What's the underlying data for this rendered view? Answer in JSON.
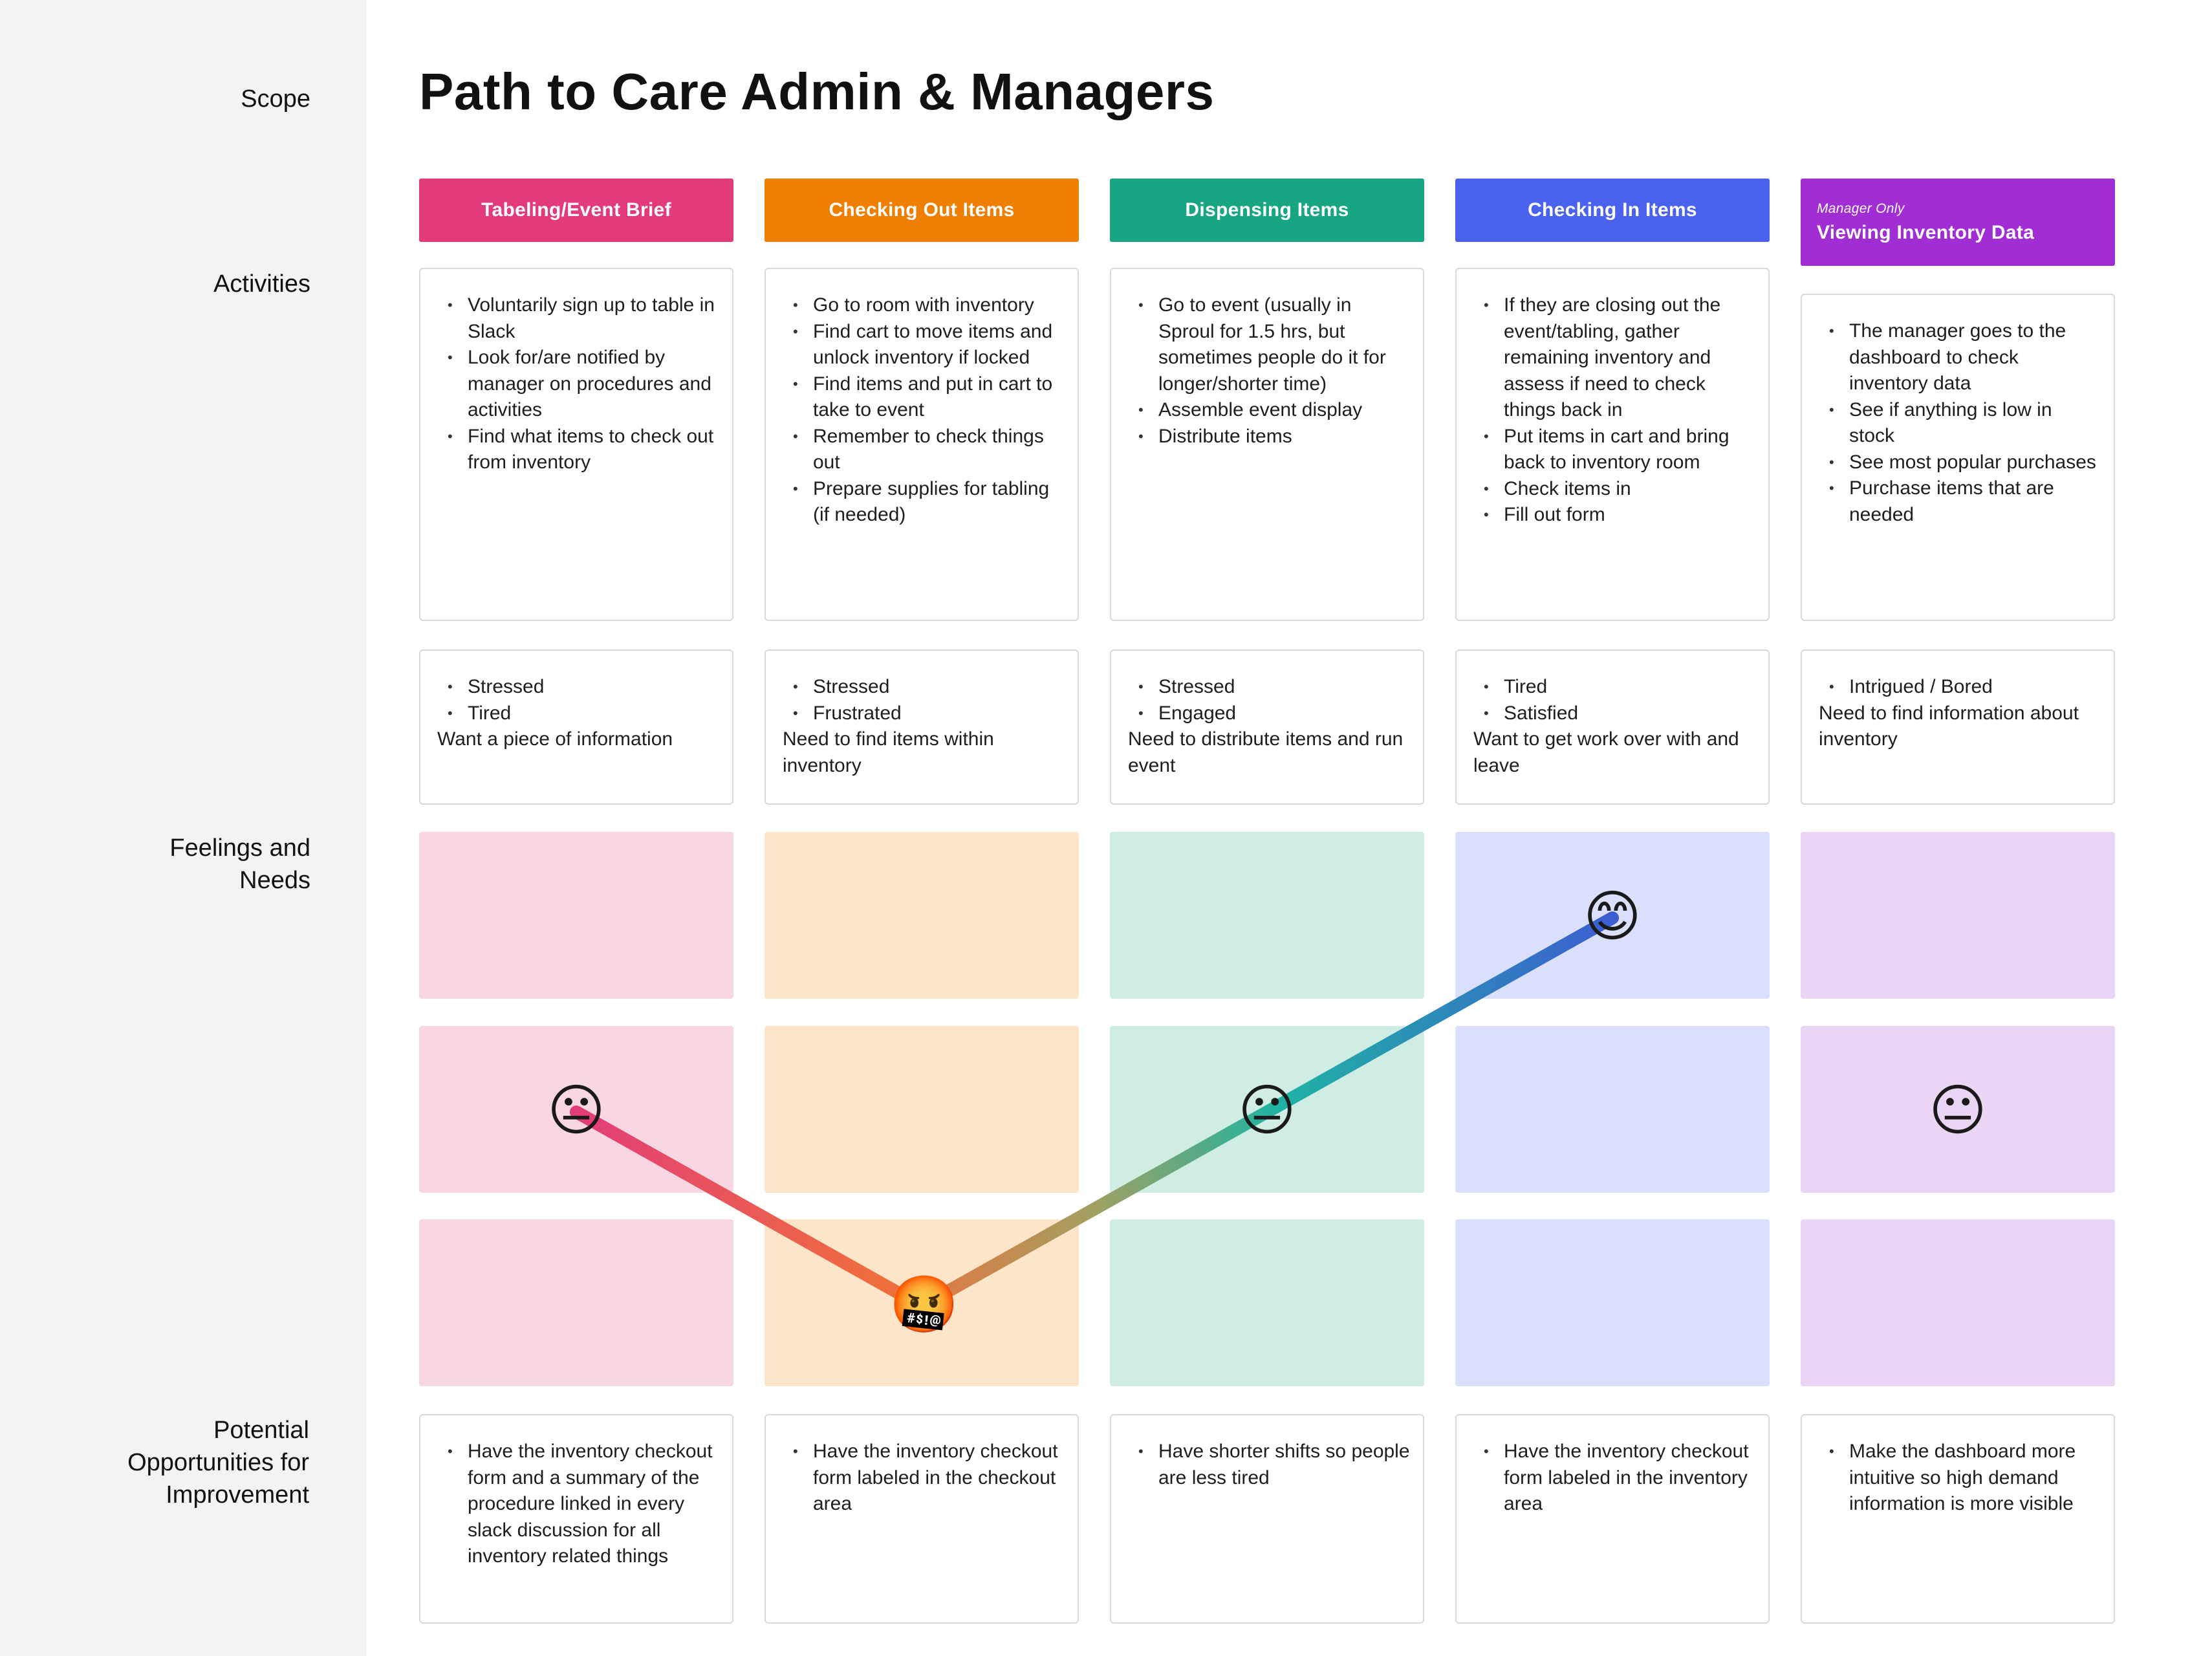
{
  "title": "Path to Care Admin & Managers",
  "row_labels": {
    "scope": "Scope",
    "activities": "Activities",
    "feelings_line1": "Feelings and",
    "feelings_line2": "Needs",
    "opportunities_line1": "Potential",
    "opportunities_line2": "Opportunities for",
    "opportunities_line3": "Improvement"
  },
  "columns": [
    {
      "header": "Tabeling/Event Brief",
      "header_sub": "",
      "color": "#e33b7a",
      "tint": "#f9d6e4",
      "activities": [
        "Voluntarily sign up to table in Slack",
        "Look for/are notified by manager on procedures and activities",
        "Find what items to check out from inventory"
      ],
      "feelings": [
        "Stressed",
        "Tired"
      ],
      "need": "Want a piece of information",
      "emotion": "neutral",
      "emoji": "😐",
      "opportunities": [
        "Have the inventory checkout form and a summary of the procedure linked in every slack discussion for all inventory related things"
      ]
    },
    {
      "header": "Checking Out Items",
      "header_sub": "",
      "color": "#ee7f00",
      "tint": "#fde5c9",
      "activities": [
        "Go to room with inventory",
        "Find cart to move items and unlock inventory if locked",
        "Find items and put in cart to take to event",
        "Remember to check things out",
        "Prepare supplies for tabling (if needed)"
      ],
      "feelings": [
        "Stressed",
        "Frustrated"
      ],
      "need": "Need to find items within inventory",
      "emotion": "angry",
      "emoji": "🤬",
      "opportunities": [
        "Have the inventory checkout form labeled in the checkout area"
      ]
    },
    {
      "header": "Dispensing Items",
      "header_sub": "",
      "color": "#17a583",
      "tint": "#d0ede3",
      "activities": [
        "Go to event (usually in Sproul for 1.5 hrs, but sometimes people do it for longer/shorter time)",
        "Assemble event display",
        "Distribute items"
      ],
      "feelings": [
        "Stressed",
        "Engaged"
      ],
      "need": "Need to distribute items and run event",
      "emotion": "neutral",
      "emoji": "😐",
      "opportunities": [
        "Have shorter shifts so people are less tired"
      ]
    },
    {
      "header": "Checking In Items",
      "header_sub": "",
      "color": "#4a62ee",
      "tint": "#dadffb",
      "activities": [
        "If they are closing out the event/tabling, gather remaining inventory and assess if need to check things back in",
        "Put items in cart and bring back to inventory room",
        "Check items in",
        "Fill out form"
      ],
      "feelings": [
        "Tired",
        "Satisfied"
      ],
      "need": "Want to get work over with and leave",
      "emotion": "happy",
      "emoji": "😊",
      "opportunities": [
        "Have the inventory checkout form labeled in the inventory area"
      ]
    },
    {
      "header": "Viewing Inventory Data",
      "header_sub": "Manager Only",
      "color": "#a12dd4",
      "tint": "#ead6f4",
      "activities": [
        "The manager goes to the dashboard to check inventory data",
        "See if anything is low in stock",
        "See most popular purchases",
        "Purchase items that are needed"
      ],
      "feelings": [
        "Intrigued / Bored"
      ],
      "need": "Need to find information about inventory",
      "emotion": "neutral",
      "emoji": "😐",
      "opportunities": [
        "Make the dashboard more intuitive so high demand information is more visible"
      ]
    }
  ]
}
